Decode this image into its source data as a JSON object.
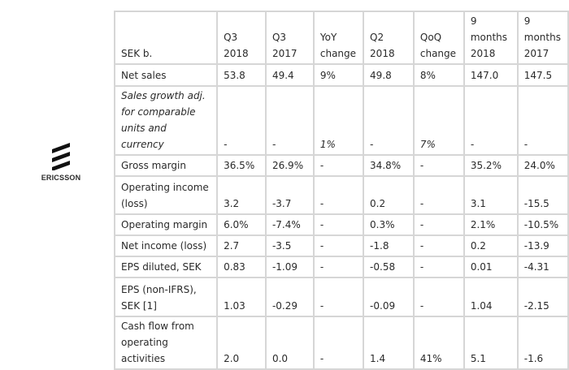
{
  "logo": {
    "name": "ERICSSON",
    "icon": "ericsson-stripes-icon"
  },
  "table": {
    "headers": [
      "SEK b.",
      "Q3\n2018",
      "Q3\n2017",
      "YoY\nchange",
      "Q2\n2018",
      "QoQ\nchange",
      "9\nmonths\n2018",
      "9\nmonths\n2017"
    ],
    "rows": [
      {
        "label": "Net sales",
        "values": [
          "53.8",
          "49.4",
          "9%",
          "49.8",
          "8%",
          "147.0",
          "147.5"
        ]
      },
      {
        "label": "Sales growth adj. for comparable units and currency",
        "italic": true,
        "values": [
          "-",
          "-",
          "1%",
          "-",
          "7%",
          "-",
          "-"
        ]
      },
      {
        "label": "Gross margin",
        "values": [
          "36.5%",
          "26.9%",
          "-",
          "34.8%",
          "-",
          "35.2%",
          "24.0%"
        ]
      },
      {
        "label": "Operating income (loss)",
        "values": [
          "3.2",
          "-3.7",
          "-",
          "0.2",
          "-",
          "3.1",
          "-15.5"
        ]
      },
      {
        "label": "Operating margin",
        "values": [
          "6.0%",
          "-7.4%",
          "-",
          "0.3%",
          "-",
          "2.1%",
          "-10.5%"
        ]
      },
      {
        "label": "Net income (loss)",
        "values": [
          "2.7",
          "-3.5",
          "-",
          "-1.8",
          "-",
          "0.2",
          "-13.9"
        ]
      },
      {
        "label": "EPS diluted, SEK",
        "values": [
          "0.83",
          "-1.09",
          "-",
          "-0.58",
          "-",
          "0.01",
          "-4.31"
        ]
      },
      {
        "label": "EPS (non-IFRS), SEK [1]",
        "values": [
          "1.03",
          "-0.29",
          "-",
          "-0.09",
          "-",
          "1.04",
          "-2.15"
        ]
      },
      {
        "label": "Cash flow from operating activities",
        "values": [
          "2.0",
          "0.0",
          "-",
          "1.4",
          "41%",
          "5.1",
          "-1.6"
        ]
      }
    ]
  }
}
